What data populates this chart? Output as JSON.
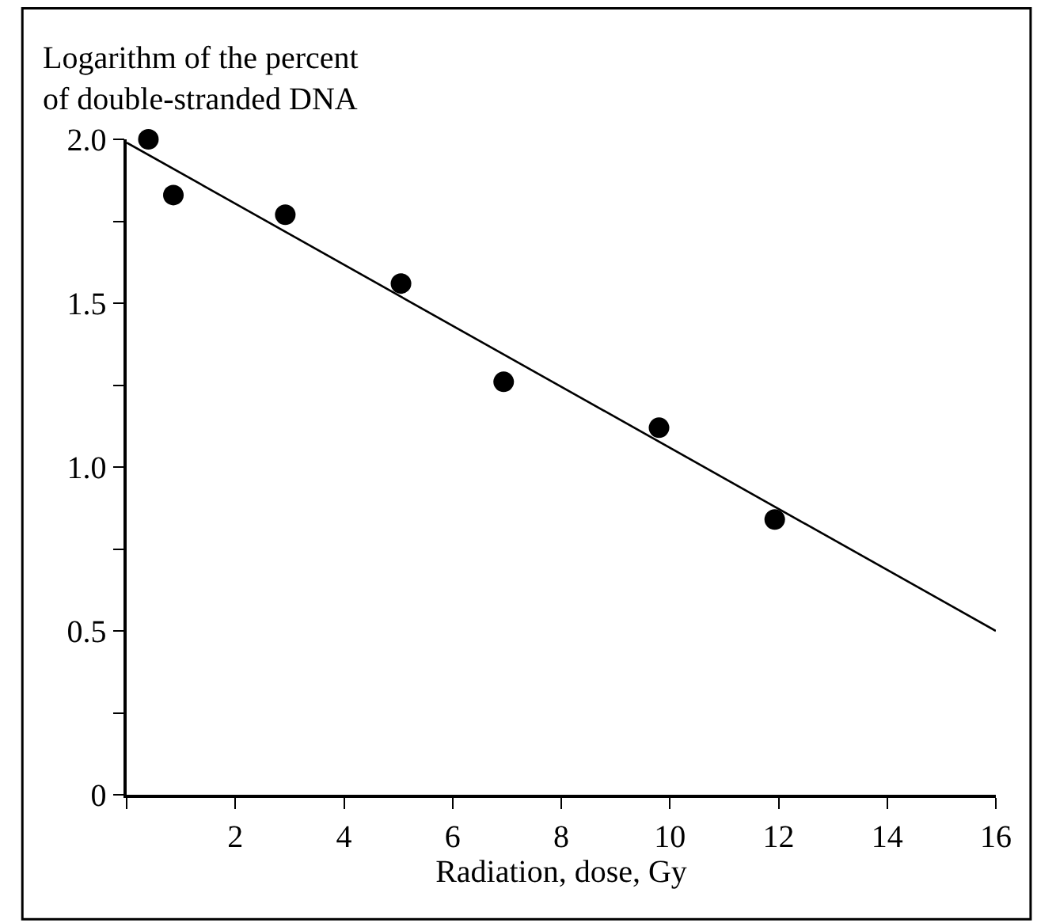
{
  "chart_data": {
    "type": "scatter",
    "ylabel": "Logarithm of the percent\nof double-stranded DNA",
    "xlabel": "Radiation, dose, Gy",
    "x": [
      0.4,
      0.86,
      2.92,
      5.05,
      6.94,
      9.8,
      11.93
    ],
    "series": [
      {
        "color": "#000000",
        "values": [
          2.0,
          1.83,
          1.77,
          1.56,
          1.26,
          1.12,
          0.84
        ],
        "marker": "circle"
      },
      {
        "type": "line",
        "color": "#000000",
        "x": [
          0,
          16
        ],
        "values": [
          1.99,
          0.5
        ],
        "line_style": "solid"
      }
    ],
    "xlim": [
      0,
      16
    ],
    "ylim": [
      0,
      2.0
    ],
    "xticks": [
      {
        "value": 0,
        "label": null
      },
      2,
      4,
      6,
      8,
      10,
      12,
      14,
      16
    ],
    "yticks": [
      0,
      {
        "value": 0.25,
        "label": null
      },
      {
        "value": 0.5,
        "label": "0.5"
      },
      {
        "value": 0.75,
        "label": null
      },
      {
        "value": 1.0,
        "label": "1.0"
      },
      {
        "value": 1.25,
        "label": null
      },
      {
        "value": 1.5,
        "label": "1.5"
      },
      {
        "value": 1.75,
        "label": null
      },
      {
        "value": 2.0,
        "label": "2.0"
      }
    ],
    "legend": false
  }
}
